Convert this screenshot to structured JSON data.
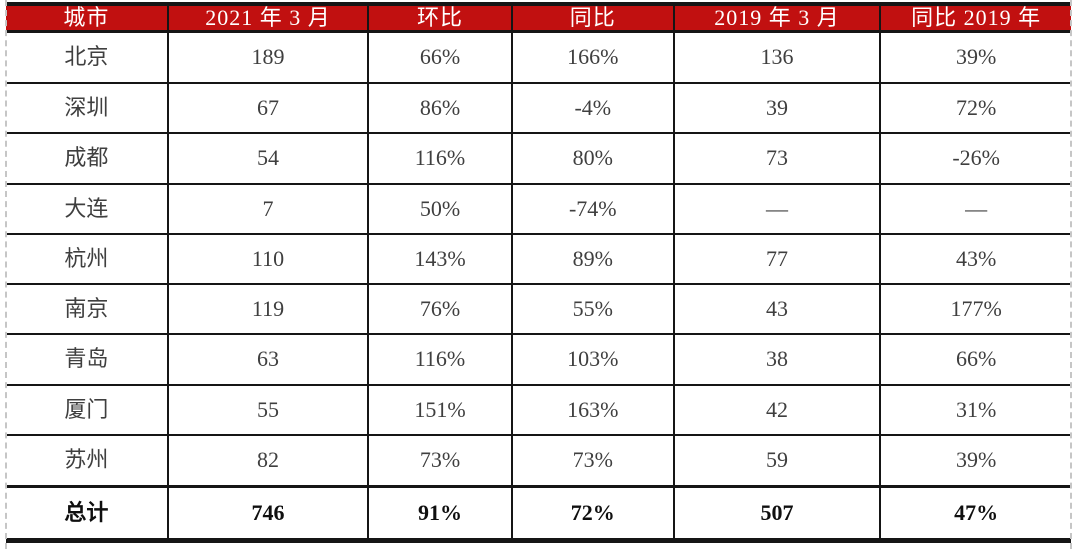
{
  "chart_data": {
    "type": "table",
    "headers": [
      "城市",
      "2021 年 3 月",
      "环比",
      "同比",
      "2019 年 3 月",
      "同比 2019 年"
    ],
    "rows": [
      [
        "北京",
        "189",
        "66%",
        "166%",
        "136",
        "39%"
      ],
      [
        "深圳",
        "67",
        "86%",
        "-4%",
        "39",
        "72%"
      ],
      [
        "成都",
        "54",
        "116%",
        "80%",
        "73",
        "-26%"
      ],
      [
        "大连",
        "7",
        "50%",
        "-74%",
        "—",
        "—"
      ],
      [
        "杭州",
        "110",
        "143%",
        "89%",
        "77",
        "43%"
      ],
      [
        "南京",
        "119",
        "76%",
        "55%",
        "43",
        "177%"
      ],
      [
        "青岛",
        "63",
        "116%",
        "103%",
        "38",
        "66%"
      ],
      [
        "厦门",
        "55",
        "151%",
        "163%",
        "42",
        "31%"
      ],
      [
        "苏州",
        "82",
        "73%",
        "73%",
        "59",
        "39%"
      ]
    ],
    "total_row": [
      "总计",
      "746",
      "91%",
      "72%",
      "507",
      "47%"
    ],
    "column_widths_pct": [
      15.2,
      18.8,
      13.5,
      15.2,
      19.4,
      17.9
    ],
    "colors": {
      "header_bg": "#c11010",
      "header_text": "#ffffff",
      "grid": "#151515",
      "body_text": "#3f3f3f",
      "page_break_dash": "#c6c6c6"
    }
  }
}
